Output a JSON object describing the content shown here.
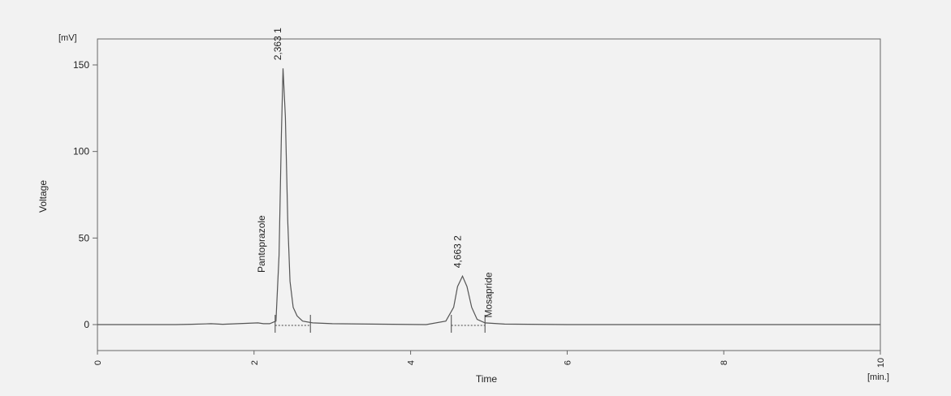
{
  "chart_data": {
    "type": "line",
    "xlabel": "Time",
    "ylabel": "Voltage",
    "x_unit": "[min.]",
    "y_unit": "[mV]",
    "xlim": [
      0,
      10
    ],
    "ylim": [
      -15,
      165
    ],
    "x_ticks": [
      0,
      2,
      4,
      6,
      8,
      10
    ],
    "y_ticks": [
      0,
      50,
      100,
      150
    ],
    "grid": false,
    "series": [
      {
        "x": [
          0,
          1.0,
          1.2,
          1.45,
          1.6,
          2.05,
          2.12,
          2.2,
          2.28,
          2.32,
          2.35,
          2.37,
          2.4,
          2.43,
          2.46,
          2.5,
          2.55,
          2.62,
          2.75,
          3.0,
          3.5,
          4.2,
          4.45,
          4.55,
          4.6,
          4.663,
          4.72,
          4.78,
          4.85,
          4.95,
          5.2,
          6.0,
          8.0,
          10.0
        ],
        "y": [
          0,
          0,
          0.2,
          0.5,
          0.2,
          1.0,
          0.5,
          0.5,
          2.0,
          40,
          110,
          148,
          120,
          60,
          25,
          10,
          5,
          2,
          1,
          0.5,
          0.3,
          0,
          2,
          10,
          22,
          28,
          22,
          10,
          3,
          1,
          0.3,
          0,
          0,
          0
        ]
      }
    ],
    "peaks": [
      {
        "number": "1",
        "retention_time": "2,363",
        "name": "Pantoprazole",
        "x": 2.363,
        "y": 148
      },
      {
        "number": "2",
        "retention_time": "4,663",
        "name": "Mosapride",
        "x": 4.663,
        "y": 28
      }
    ],
    "integration_marks": [
      2.27,
      2.72,
      4.52,
      4.95
    ]
  },
  "colors": {
    "trace": "#555555",
    "axis": "#555555",
    "background": "#f2f2f2"
  }
}
